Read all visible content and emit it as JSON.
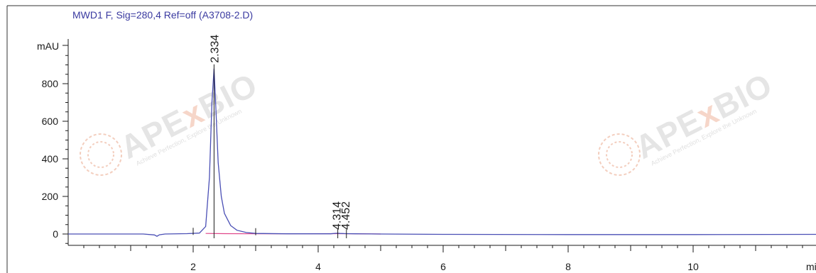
{
  "watermark": {
    "brand": "APE",
    "brand_x": "x",
    "brand_tail": "BIO",
    "tagline": "Achieve Perfection, Explore the Unknown"
  },
  "chart_data": {
    "type": "line",
    "title": "MWD1 F, Sig=280,4 Ref=off (A3708-2.D)",
    "ylabel": "mAU",
    "xlabel": "mi",
    "xlim": [
      0,
      12
    ],
    "ylim": [
      -60,
      1000
    ],
    "xticks": [
      2,
      4,
      6,
      8,
      10
    ],
    "yticks": [
      0,
      200,
      400,
      600,
      800
    ],
    "grid": false,
    "colors": {
      "signal": "#4a4fb5",
      "baseline": "#e0468a",
      "axis": "#1a1a1a"
    },
    "peaks": [
      {
        "label": "2.334",
        "rt": 2.334,
        "height": 880
      },
      {
        "label": "4.314",
        "rt": 4.314,
        "height": 3
      },
      {
        "label": "4.452",
        "rt": 4.452,
        "height": 2
      }
    ],
    "series": [
      {
        "x": [
          0.0,
          1.2,
          1.38,
          1.42,
          1.46,
          1.55,
          1.9,
          2.1,
          2.2,
          2.26,
          2.3,
          2.334,
          2.36,
          2.4,
          2.45,
          2.5,
          2.6,
          2.7,
          2.85,
          3.0,
          3.5,
          4.2,
          4.3,
          4.35,
          4.45,
          4.6,
          5.0,
          6.0,
          8.0,
          10.0,
          12.0
        ],
        "y": [
          0,
          0,
          -5,
          -12,
          -4,
          0,
          2,
          5,
          40,
          300,
          700,
          880,
          690,
          380,
          200,
          110,
          45,
          20,
          8,
          3,
          1,
          1,
          4,
          3,
          2,
          1,
          0,
          -2,
          -3,
          -3,
          -2
        ]
      }
    ]
  }
}
